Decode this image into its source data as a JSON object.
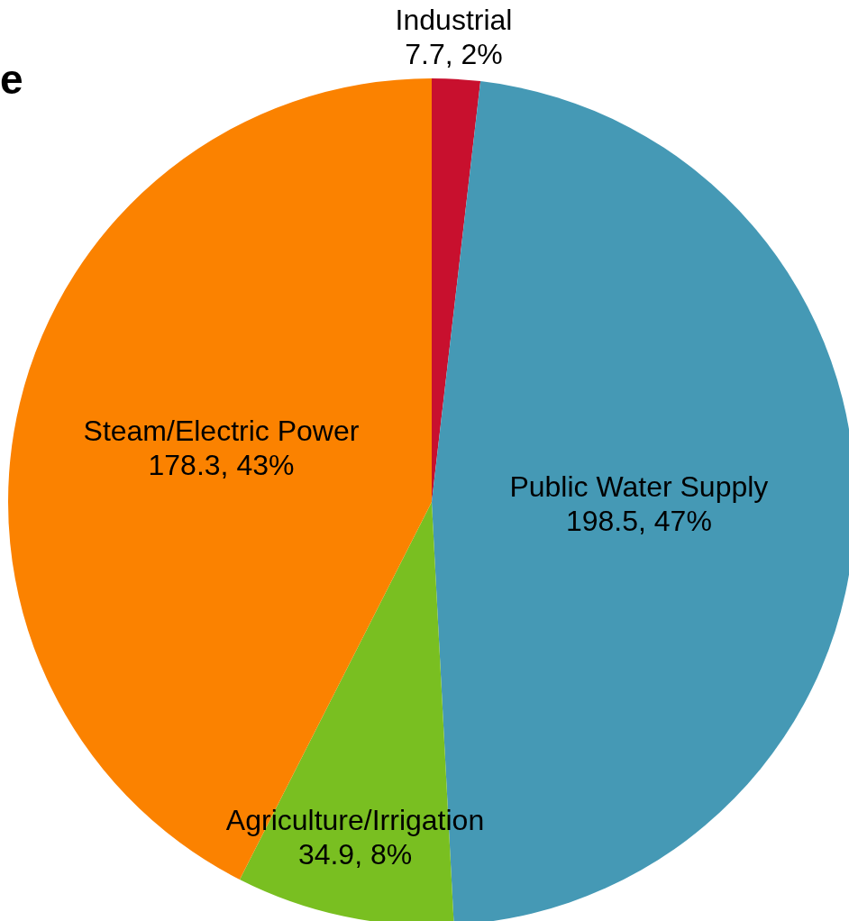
{
  "chart_data": {
    "type": "pie",
    "title": "e",
    "categories": [
      "Industrial",
      "Public Water Supply",
      "Agriculture/Irrigation",
      "Steam/Electric Power"
    ],
    "values": [
      7.7,
      198.5,
      34.9,
      178.3
    ],
    "colors": [
      "#c8102e",
      "#4599b5",
      "#79bf21",
      "#fb8200"
    ],
    "value_labels": [
      "7.7, 2%",
      "198.5, 47%",
      "34.9, 8%",
      "178.3, 43%"
    ],
    "legend": false
  }
}
